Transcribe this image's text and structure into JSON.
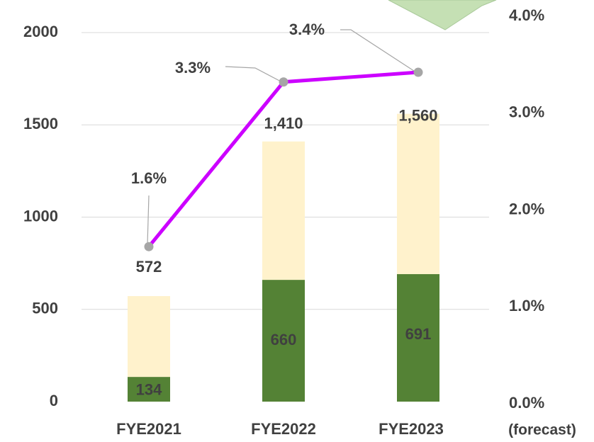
{
  "chart_data": {
    "type": "bar_line",
    "categories": [
      "FYE2021",
      "FYE2022",
      "FYE2023"
    ],
    "annotations": [
      "(forecast)"
    ],
    "series": [
      {
        "color": "#548235",
        "values": [
          134,
          660,
          691
        ]
      },
      {
        "color": "#fff2cc",
        "values": [
          438,
          750,
          869
        ]
      },
      {
        "type": "line",
        "axis": "y2",
        "color": "#cc00ff",
        "marker_color": "#a6a6a6",
        "values": [
          1.6,
          3.3,
          3.4
        ],
        "value_labels": [
          "1.6%",
          "3.3%",
          "3.4%"
        ]
      }
    ],
    "totals": [
      572,
      1410,
      1560
    ],
    "total_labels": [
      "572",
      "1,410",
      "1,560"
    ],
    "ylim": [
      0,
      2100
    ],
    "yticks": [
      0,
      500,
      1000,
      1500,
      2000
    ],
    "y2lim": [
      0,
      4.0
    ],
    "y2ticks": [
      {
        "value": 0,
        "label": "0.0%"
      },
      {
        "value": 1,
        "label": "1.0%"
      },
      {
        "value": 2,
        "label": "2.0%"
      },
      {
        "value": 3,
        "label": "3.0%"
      },
      {
        "value": 4,
        "label": "4.0%"
      }
    ],
    "grid": true
  }
}
